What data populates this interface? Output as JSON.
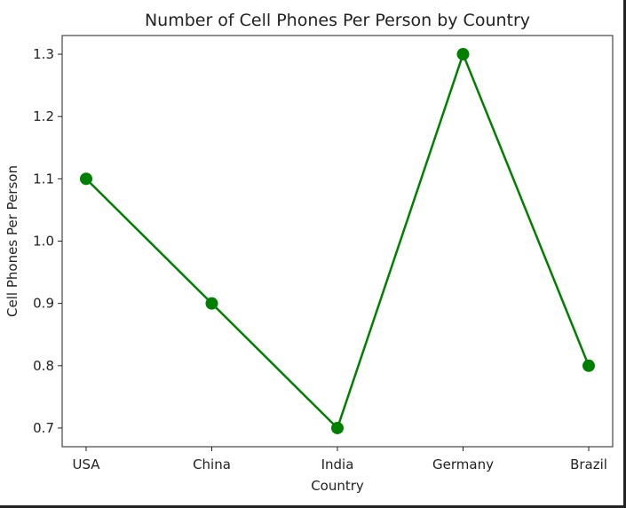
{
  "chart_data": {
    "type": "line",
    "title": "Number of Cell Phones Per Person by Country",
    "xlabel": "Country",
    "ylabel": "Cell Phones Per Person",
    "categories": [
      "USA",
      "China",
      "India",
      "Germany",
      "Brazil"
    ],
    "series": [
      {
        "values": [
          1.1,
          0.9,
          0.7,
          1.3,
          0.8
        ],
        "color": "#008000",
        "marker": "circle"
      }
    ],
    "yticks": [
      "0.7",
      "0.8",
      "0.9",
      "1.0",
      "1.1",
      "1.2",
      "1.3"
    ],
    "ylim": [
      0.67,
      1.33
    ],
    "grid": false
  }
}
